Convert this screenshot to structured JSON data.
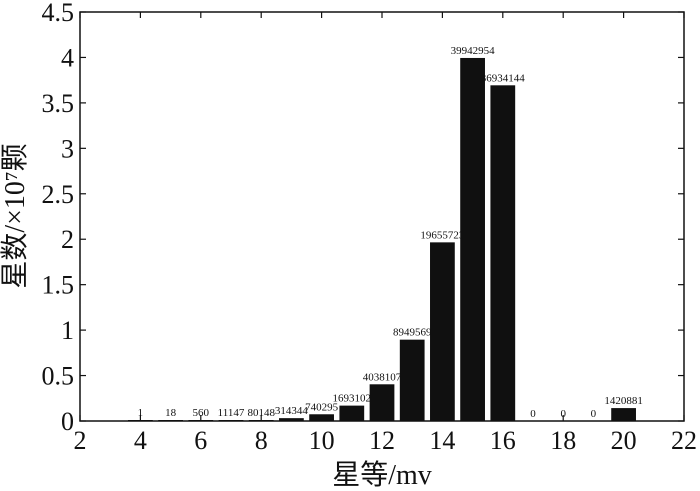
{
  "chart_data": {
    "type": "bar",
    "xlabel": "星等/mv",
    "ylabel": "星数/×10⁷颗",
    "xlim": [
      2,
      22
    ],
    "ylim": [
      0,
      4.5
    ],
    "xticks": [
      "2",
      "4",
      "6",
      "8",
      "10",
      "12",
      "14",
      "16",
      "18",
      "20",
      "22"
    ],
    "yticks": [
      "0",
      "0.5",
      "1",
      "1.5",
      "2",
      "2.5",
      "3",
      "3.5",
      "4",
      "4.5"
    ],
    "x": [
      4,
      5,
      6,
      7,
      8,
      9,
      10,
      11,
      12,
      13,
      14,
      15,
      16,
      17,
      18,
      19,
      20
    ],
    "values": [
      1e-07,
      1.8e-06,
      5.6e-05,
      0.0011147,
      0.0080148,
      0.0314344,
      0.0740295,
      0.1693102,
      0.4038107,
      0.8949569,
      1.9655723,
      3.9942954,
      3.6934144,
      0,
      0,
      0,
      0.1420881
    ],
    "labels": [
      "1",
      "18",
      "560",
      "11147",
      "80148",
      "314344",
      "740295",
      "1693102",
      "4038107",
      "8949569",
      "19655723",
      "39942954",
      "36934144",
      "0",
      "0",
      "0",
      "1420881"
    ],
    "grid": false,
    "color": "#101010"
  }
}
